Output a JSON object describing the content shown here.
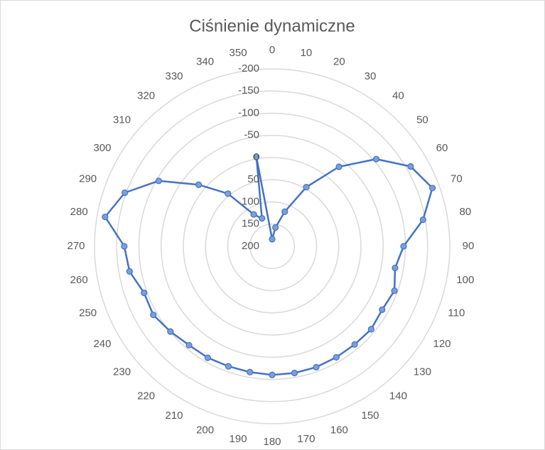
{
  "chart_data": {
    "type": "radar",
    "title": "Ciśnienie dynamiczne",
    "categories": [
      0,
      10,
      20,
      30,
      40,
      50,
      60,
      70,
      80,
      90,
      100,
      110,
      120,
      130,
      140,
      150,
      160,
      170,
      180,
      190,
      200,
      210,
      220,
      230,
      240,
      250,
      260,
      270,
      280,
      290,
      300,
      310,
      320,
      330,
      340,
      350
    ],
    "values": [
      184,
      157,
      117,
      46,
      -34,
      -106,
      -160,
      -184,
      -145,
      -96,
      -81,
      -93,
      -86,
      -91,
      -89,
      -89,
      -90,
      -90,
      -90,
      -88,
      -88,
      -90,
      -91,
      -99,
      -109,
      -107,
      -126,
      -133,
      -182,
      -153,
      -95,
      -16,
      45,
      117,
      133,
      -5
    ],
    "color": "#4472c4",
    "ylim": [
      200,
      -200
    ],
    "yticks": [
      200,
      150,
      100,
      50,
      0,
      -50,
      -100,
      -150,
      -200
    ],
    "grid": true
  }
}
